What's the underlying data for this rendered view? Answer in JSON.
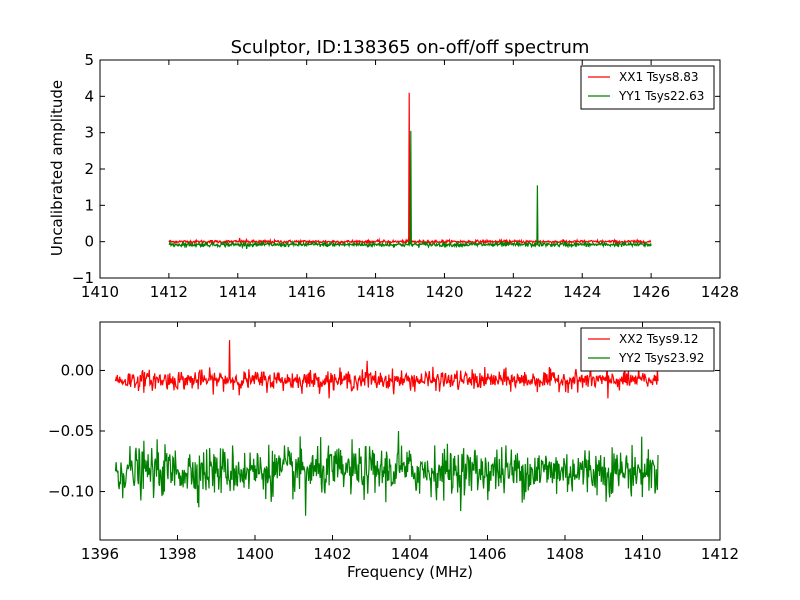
{
  "chart_data": [
    {
      "type": "line",
      "title": "Sculptor, ID:138365 on-off/off spectrum",
      "xlabel": "",
      "ylabel": "Uncalibrated amplitude",
      "xlim": [
        1410,
        1428
      ],
      "ylim": [
        -1,
        5
      ],
      "xticks": [
        1410,
        1412,
        1414,
        1416,
        1418,
        1420,
        1422,
        1424,
        1426,
        1428
      ],
      "yticks": [
        -1,
        0,
        1,
        2,
        3,
        4,
        5
      ],
      "xtick_labels": [
        "1410",
        "1412",
        "1414",
        "1416",
        "1418",
        "1420",
        "1422",
        "1424",
        "1426",
        "1428"
      ],
      "ytick_labels": [
        "−1",
        "0",
        "1",
        "2",
        "3",
        "4",
        "5"
      ],
      "grid": false,
      "legend_position": "top-right",
      "series": [
        {
          "name": "XX1 Tsys8.83",
          "color": "#ff0000",
          "x_range": [
            1412.0,
            1426.0
          ],
          "baseline": 0.0,
          "noise": 0.02,
          "spikes": [
            {
              "x": 1414.05,
              "y": 0.1
            },
            {
              "x": 1418.98,
              "y": 4.1
            },
            {
              "x": 1422.7,
              "y": -0.05
            }
          ]
        },
        {
          "name": "YY1 Tsys22.63",
          "color": "#008000",
          "x_range": [
            1412.0,
            1426.0
          ],
          "baseline": -0.08,
          "noise": 0.03,
          "spikes": [
            {
              "x": 1419.02,
              "y": 3.05
            },
            {
              "x": 1422.7,
              "y": 1.55
            }
          ]
        }
      ]
    },
    {
      "type": "line",
      "title": "",
      "xlabel": "Frequency (MHz)",
      "ylabel": "",
      "xlim": [
        1396,
        1412
      ],
      "ylim": [
        -0.14,
        0.04
      ],
      "xticks": [
        1396,
        1398,
        1400,
        1402,
        1404,
        1406,
        1408,
        1410,
        1412
      ],
      "yticks": [
        0.0,
        -0.05,
        -0.1
      ],
      "xtick_labels": [
        "1396",
        "1398",
        "1400",
        "1402",
        "1404",
        "1406",
        "1408",
        "1410",
        "1412"
      ],
      "ytick_labels": [
        "0.00",
        "−0.05",
        "−0.10"
      ],
      "grid": false,
      "legend_position": "top-right",
      "series": [
        {
          "name": "XX2 Tsys9.12",
          "color": "#ff0000",
          "x_range": [
            1396.4,
            1410.4
          ],
          "baseline": -0.008,
          "noise": 0.004,
          "spikes": [
            {
              "x": 1399.35,
              "y": 0.025
            },
            {
              "x": 1402.9,
              "y": 0.008
            },
            {
              "x": 1409.1,
              "y": -0.023
            }
          ]
        },
        {
          "name": "YY2 Tsys23.92",
          "color": "#008000",
          "x_range": [
            1396.4,
            1410.4
          ],
          "baseline": -0.083,
          "noise": 0.01,
          "spikes": [
            {
              "x": 1403.7,
              "y": -0.05
            },
            {
              "x": 1401.3,
              "y": -0.12
            }
          ]
        }
      ]
    }
  ]
}
